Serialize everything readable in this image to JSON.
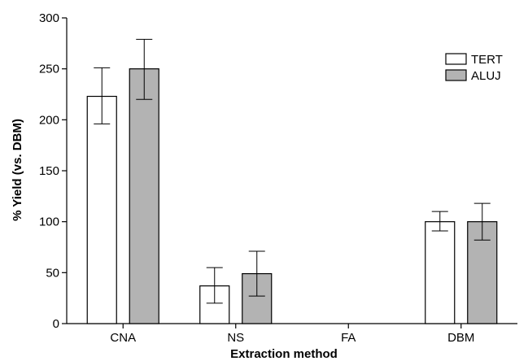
{
  "chart_data": {
    "type": "bar",
    "title": "",
    "xlabel": "Extraction method",
    "ylabel": "% Yield (vs. DBM)",
    "categories": [
      "CNA",
      "NS",
      "FA",
      "DBM"
    ],
    "ylim": [
      0,
      300
    ],
    "yticks": [
      0,
      50,
      100,
      150,
      200,
      250,
      300
    ],
    "grid": false,
    "legend_position": "top-right",
    "series": [
      {
        "name": "TERT",
        "color": "#ffffff",
        "values": [
          223,
          37,
          0,
          100
        ],
        "err_low": [
          196,
          20,
          null,
          91
        ],
        "err_high": [
          251,
          55,
          null,
          110
        ]
      },
      {
        "name": "ALUJ",
        "color": "#b3b3b3",
        "values": [
          250,
          49,
          0,
          100
        ],
        "err_low": [
          220,
          27,
          null,
          82
        ],
        "err_high": [
          279,
          71,
          null,
          118
        ]
      }
    ]
  }
}
